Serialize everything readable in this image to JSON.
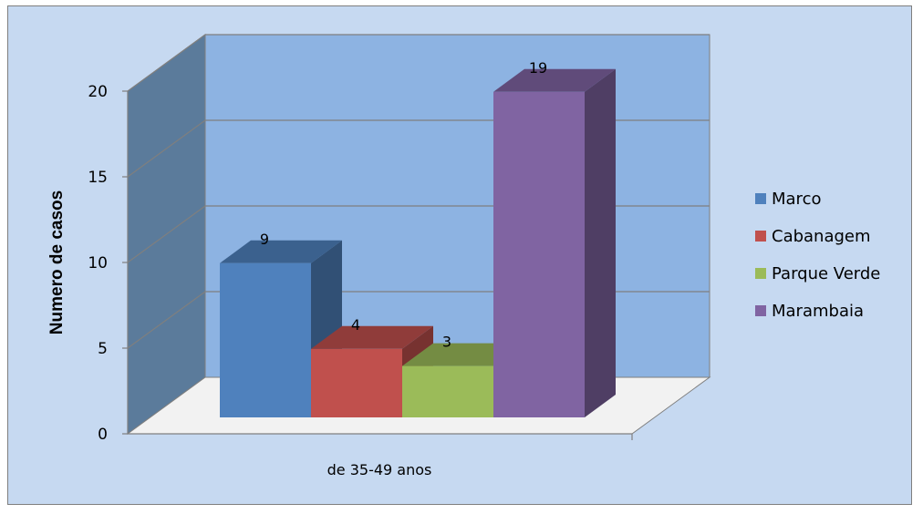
{
  "chart_data": {
    "type": "bar",
    "subtype": "3d-clustered-column",
    "categories": [
      "de 35-49 anos"
    ],
    "series": [
      {
        "name": "Marco",
        "values": [
          9
        ],
        "color": "#4f81bd"
      },
      {
        "name": "Cabanagem",
        "values": [
          4
        ],
        "color": "#c0504d"
      },
      {
        "name": "Parque Verde",
        "values": [
          3
        ],
        "color": "#9bbb59"
      },
      {
        "name": "Marambaia",
        "values": [
          19
        ],
        "color": "#8064a2"
      }
    ],
    "ylabel": "Numero de casos",
    "xlabel": "",
    "ylim": [
      0,
      20
    ],
    "yticks": [
      0,
      5,
      10,
      15,
      20
    ],
    "grid": true,
    "legend": "right",
    "data_labels": true
  }
}
